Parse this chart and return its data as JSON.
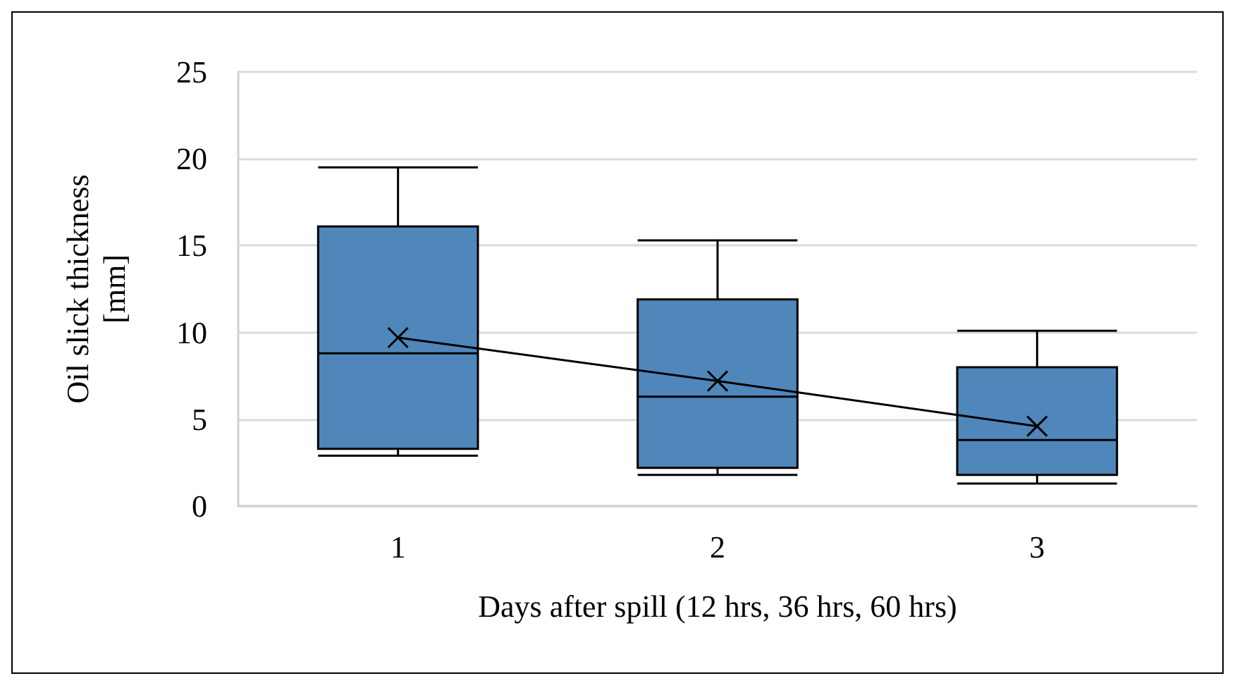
{
  "chart_data": {
    "type": "box",
    "xlabel": "Days after spill (12 hrs, 36 hrs, 60 hrs)",
    "ylabel": "Oil slick thickness\n[mm]",
    "categories": [
      "1",
      "2",
      "3"
    ],
    "boxes": [
      {
        "low": 2.9,
        "q1": 3.3,
        "median": 8.8,
        "q3": 16.1,
        "high": 19.5
      },
      {
        "low": 1.8,
        "q1": 2.2,
        "median": 6.3,
        "q3": 11.9,
        "high": 15.3
      },
      {
        "low": 1.3,
        "q1": 1.8,
        "median": 3.8,
        "q3": 8.0,
        "high": 10.1
      }
    ],
    "color": "#4f87bb",
    "series": [
      {
        "type": "line",
        "values": [
          9.7,
          7.2,
          4.6
        ],
        "color": "#000000",
        "marker": "cross"
      }
    ],
    "ylim": [
      0,
      25
    ],
    "yticks": [
      0,
      5,
      10,
      15,
      20,
      25
    ],
    "grid": "y"
  }
}
